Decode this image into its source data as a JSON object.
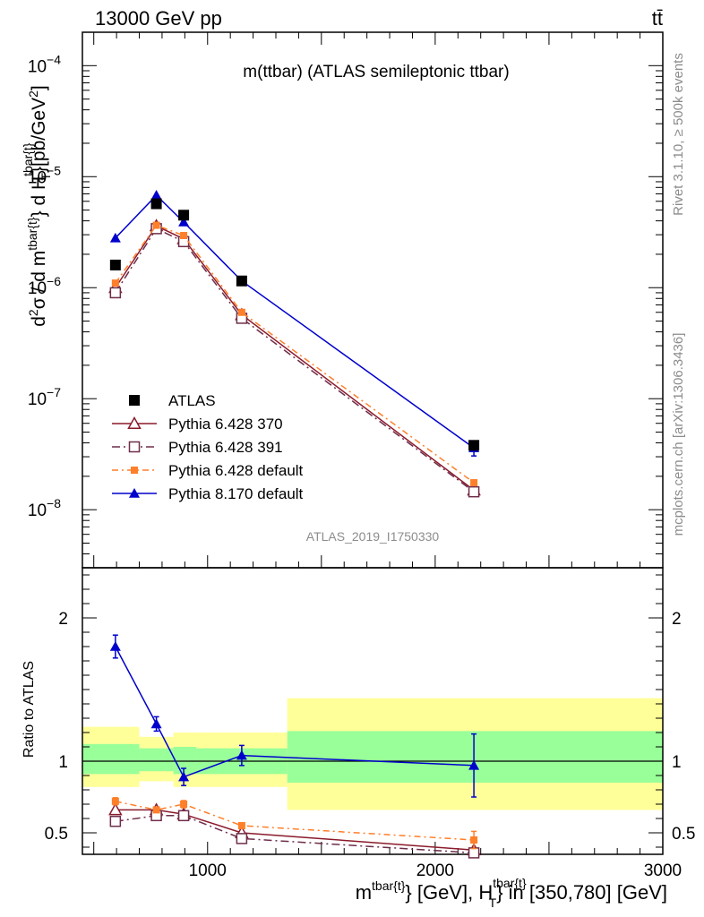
{
  "header": {
    "left": "13000 GeV pp",
    "right": "tt̄"
  },
  "side_text": {
    "top": "Rivet 3.1.10, ≥ 500k events",
    "bottom": "mcplots.cern.ch [arXiv:1306.3436]"
  },
  "colors": {
    "atlas": "#000000",
    "p370": "#8b1a2b",
    "p391": "#6e2e4a",
    "p6def": "#ff7f2a",
    "p8def": "#0000cc",
    "band_inner": "#99ff99",
    "band_outer": "#ffff99"
  },
  "chart_data": [
    {
      "type": "scatter",
      "title": "m(ttbar) (ATLAS semileptonic ttbar)",
      "analysis_id": "ATLAS_2019_I1750330",
      "ylabel": "d²σ / d m^tbar{t} d H_T^tbar{t} [pb/GeV²]",
      "y_scale": "log",
      "xlim": [
        450,
        3000
      ],
      "ylim": [
        3e-09,
        0.0002
      ],
      "y_ticks": [
        {
          "label": "10",
          "exp": "−8",
          "value": 1e-08
        },
        {
          "label": "10",
          "exp": "−7",
          "value": 1e-07
        },
        {
          "label": "10",
          "exp": "−6",
          "value": 1e-06
        },
        {
          "label": "10",
          "exp": "−5",
          "value": 1e-05
        },
        {
          "label": "10",
          "exp": "−4",
          "value": 0.0001
        }
      ],
      "legend": "middle-left",
      "series": [
        {
          "name": "ATLAS",
          "marker": "filled-square",
          "x": [
            595,
            775,
            895,
            1150,
            2170
          ],
          "y": [
            1.6e-06,
            5.7e-06,
            4.5e-06,
            1.15e-06,
            3.8e-08
          ]
        },
        {
          "name": "Pythia 6.428 370",
          "marker": "open-triangle",
          "x": [
            595,
            775,
            895,
            1150,
            2170
          ],
          "y": [
            1e-06,
            3.6e-06,
            2.75e-06,
            5.7e-07,
            1.5e-08
          ]
        },
        {
          "name": "Pythia 6.428 391",
          "marker": "open-square",
          "x": [
            595,
            775,
            895,
            1150,
            2170
          ],
          "y": [
            9e-07,
            3.4e-06,
            2.6e-06,
            5.3e-07,
            1.45e-08
          ]
        },
        {
          "name": "Pythia 6.428 default",
          "marker": "filled-small-square",
          "x": [
            595,
            775,
            895,
            1150,
            2170
          ],
          "y": [
            1.1e-06,
            3.65e-06,
            2.95e-06,
            6e-07,
            1.75e-08
          ]
        },
        {
          "name": "Pythia 8.170 default",
          "marker": "filled-triangle",
          "x": [
            595,
            775,
            895,
            1150,
            2170
          ],
          "y": [
            2.8e-06,
            6.8e-06,
            3.9e-06,
            1.15e-06,
            3.6e-08
          ],
          "yerr": [
            0,
            0,
            0,
            0,
            5.5e-09
          ]
        }
      ]
    },
    {
      "type": "scatter",
      "ylabel": "Ratio to ATLAS",
      "xlabel": "m^tbar{t} [GeV], H_T^tbar{t} in [350,780] [GeV]",
      "xlim": [
        450,
        3000
      ],
      "ylim": [
        0.35,
        2.35
      ],
      "x_ticks": [
        {
          "label": "1000",
          "value": 1000
        },
        {
          "label": "2000",
          "value": 2000
        },
        {
          "label": "3000",
          "value": 3000
        }
      ],
      "y_ticks": [
        {
          "label": "0.5",
          "value": 0.5
        },
        {
          "label": "1",
          "value": 1
        },
        {
          "label": "2",
          "value": 2
        }
      ],
      "bands": [
        {
          "x0": 450,
          "x1": 700,
          "inner": [
            0.91,
            1.12
          ],
          "outer": [
            0.82,
            1.24
          ]
        },
        {
          "x0": 700,
          "x1": 850,
          "inner": [
            0.93,
            1.09
          ],
          "outer": [
            0.86,
            1.17
          ]
        },
        {
          "x0": 850,
          "x1": 950,
          "inner": [
            0.91,
            1.1
          ],
          "outer": [
            0.82,
            1.2
          ]
        },
        {
          "x0": 950,
          "x1": 1350,
          "inner": [
            0.91,
            1.09
          ],
          "outer": [
            0.82,
            1.2
          ]
        },
        {
          "x0": 1350,
          "x1": 3000,
          "inner": [
            0.85,
            1.21
          ],
          "outer": [
            0.66,
            1.44
          ]
        }
      ],
      "series": [
        {
          "name": "Pythia 6.428 370",
          "x": [
            595,
            775,
            895,
            1150,
            2170
          ],
          "y": [
            0.66,
            0.66,
            0.63,
            0.5,
            0.38
          ]
        },
        {
          "name": "Pythia 6.428 391",
          "x": [
            595,
            775,
            895,
            1150,
            2170
          ],
          "y": [
            0.58,
            0.62,
            0.62,
            0.46,
            0.36
          ]
        },
        {
          "name": "Pythia 6.428 default",
          "x": [
            595,
            775,
            895,
            1150,
            2170
          ],
          "y": [
            0.72,
            0.66,
            0.7,
            0.55,
            0.45
          ],
          "yerr": [
            0.025,
            0.015,
            0.025,
            0.02,
            0.06
          ]
        },
        {
          "name": "Pythia 8.170 default",
          "x": [
            595,
            775,
            895,
            1150,
            2170
          ],
          "y": [
            1.8,
            1.26,
            0.89,
            1.04,
            0.97
          ],
          "yerr": [
            0.08,
            0.05,
            0.06,
            0.07,
            0.22
          ]
        }
      ]
    }
  ]
}
